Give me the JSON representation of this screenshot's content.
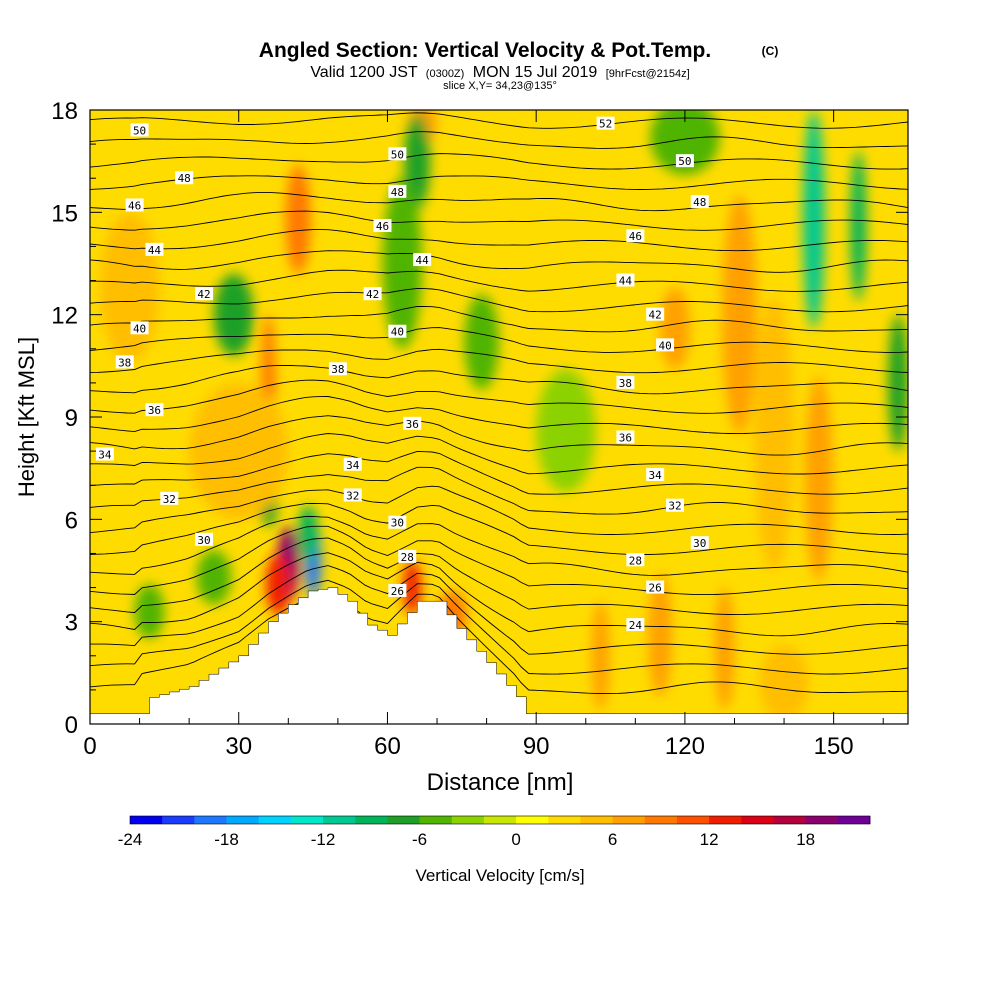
{
  "chart_data": {
    "type": "heatmap",
    "title": "Angled Section: Vertical Velocity & Pot.Temp.",
    "title_mark": "(C)",
    "subtitle_prefix": "Valid 1200 JST",
    "subtitle_zulu": "(0300Z)",
    "subtitle_date": "MON 15 Jul 2019",
    "subtitle_fcst": "[9hrFcst@2154z]",
    "slice_label": "slice X,Y= 34,23@135°",
    "xlabel": "Distance [nm]",
    "ylabel": "Height [Kft MSL]",
    "xlim": [
      0,
      165
    ],
    "ylim": [
      0,
      18
    ],
    "x_ticks": [
      0,
      30,
      60,
      90,
      120,
      150
    ],
    "y_ticks": [
      0,
      3,
      6,
      9,
      12,
      15,
      18
    ],
    "colorbar": {
      "label": "Vertical Velocity [cm/s]",
      "min": -24,
      "max": 20,
      "step": 2,
      "tick_values": [
        -24,
        -18,
        -12,
        -6,
        0,
        6,
        12,
        18
      ],
      "colors": [
        "#0000ee",
        "#1a3cff",
        "#1e78ff",
        "#00a8ff",
        "#00d2ff",
        "#00e6c8",
        "#00c890",
        "#00b45a",
        "#1ea028",
        "#50b400",
        "#8cd200",
        "#c8e600",
        "#ffff00",
        "#ffdc00",
        "#ffbe00",
        "#ffa000",
        "#ff7800",
        "#ff5000",
        "#f01e00",
        "#dc0014",
        "#b4003c",
        "#8c006e",
        "#6e0096"
      ]
    },
    "terrain": [
      [
        10,
        0.7
      ],
      [
        20,
        1.1
      ],
      [
        30,
        2.0
      ],
      [
        36,
        3.0
      ],
      [
        40,
        3.5
      ],
      [
        44,
        3.9
      ],
      [
        48,
        4.0
      ],
      [
        52,
        3.6
      ],
      [
        56,
        2.9
      ],
      [
        60,
        2.6
      ],
      [
        63,
        3.1
      ],
      [
        66,
        3.6
      ],
      [
        70,
        3.6
      ],
      [
        74,
        2.8
      ],
      [
        80,
        1.8
      ],
      [
        86,
        0.8
      ],
      [
        88,
        0.3
      ],
      [
        90,
        0.3
      ]
    ],
    "theta_labels": [
      {
        "x": 10,
        "y": 17.4,
        "t": "50"
      },
      {
        "x": 19,
        "y": 16.0,
        "t": "48"
      },
      {
        "x": 9,
        "y": 15.2,
        "t": "46"
      },
      {
        "x": 13,
        "y": 13.9,
        "t": "44"
      },
      {
        "x": 23,
        "y": 12.6,
        "t": "42"
      },
      {
        "x": 10,
        "y": 11.6,
        "t": "40"
      },
      {
        "x": 7,
        "y": 10.6,
        "t": "38"
      },
      {
        "x": 13,
        "y": 9.2,
        "t": "36"
      },
      {
        "x": 3,
        "y": 7.9,
        "t": "34"
      },
      {
        "x": 16,
        "y": 6.6,
        "t": "32"
      },
      {
        "x": 23,
        "y": 5.4,
        "t": "30"
      },
      {
        "x": 62,
        "y": 16.7,
        "t": "50"
      },
      {
        "x": 62,
        "y": 15.6,
        "t": "48"
      },
      {
        "x": 59,
        "y": 14.6,
        "t": "46"
      },
      {
        "x": 67,
        "y": 13.6,
        "t": "44"
      },
      {
        "x": 57,
        "y": 12.6,
        "t": "42"
      },
      {
        "x": 62,
        "y": 11.5,
        "t": "40"
      },
      {
        "x": 50,
        "y": 10.4,
        "t": "38"
      },
      {
        "x": 65,
        "y": 8.8,
        "t": "36"
      },
      {
        "x": 53,
        "y": 7.6,
        "t": "34"
      },
      {
        "x": 53,
        "y": 6.7,
        "t": "32"
      },
      {
        "x": 62,
        "y": 5.9,
        "t": "30"
      },
      {
        "x": 64,
        "y": 4.9,
        "t": "28"
      },
      {
        "x": 62,
        "y": 3.9,
        "t": "26"
      },
      {
        "x": 104,
        "y": 17.6,
        "t": "52"
      },
      {
        "x": 120,
        "y": 16.5,
        "t": "50"
      },
      {
        "x": 123,
        "y": 15.3,
        "t": "48"
      },
      {
        "x": 110,
        "y": 14.3,
        "t": "46"
      },
      {
        "x": 108,
        "y": 13.0,
        "t": "44"
      },
      {
        "x": 114,
        "y": 12.0,
        "t": "42"
      },
      {
        "x": 116,
        "y": 11.1,
        "t": "40"
      },
      {
        "x": 108,
        "y": 10.0,
        "t": "38"
      },
      {
        "x": 108,
        "y": 8.4,
        "t": "36"
      },
      {
        "x": 114,
        "y": 7.3,
        "t": "34"
      },
      {
        "x": 118,
        "y": 6.4,
        "t": "32"
      },
      {
        "x": 123,
        "y": 5.3,
        "t": "30"
      },
      {
        "x": 110,
        "y": 4.8,
        "t": "28"
      },
      {
        "x": 114,
        "y": 4.0,
        "t": "26"
      },
      {
        "x": 110,
        "y": 2.9,
        "t": "24"
      }
    ],
    "velocity_cells": [
      {
        "x": 40,
        "y": 4.7,
        "sx": 2.2,
        "sy": 1.1,
        "v": 19
      },
      {
        "x": 38,
        "y": 4.1,
        "sx": 2.5,
        "sy": 0.9,
        "v": 12
      },
      {
        "x": 45,
        "y": 4.8,
        "sx": 1.6,
        "sy": 1.1,
        "v": -20
      },
      {
        "x": 44,
        "y": 5.6,
        "sx": 2.0,
        "sy": 0.8,
        "v": -10
      },
      {
        "x": 36,
        "y": 6.4,
        "sx": 1.8,
        "sy": 0.6,
        "v": -8
      },
      {
        "x": 65,
        "y": 4.0,
        "sx": 1.8,
        "sy": 0.8,
        "v": 12
      },
      {
        "x": 73,
        "y": 3.2,
        "sx": 3.0,
        "sy": 0.7,
        "v": 9
      },
      {
        "x": 42,
        "y": 14.8,
        "sx": 2.5,
        "sy": 1.6,
        "v": 8
      },
      {
        "x": 36,
        "y": 10.2,
        "sx": 1.4,
        "sy": 1.8,
        "v": 8
      },
      {
        "x": 67,
        "y": 17.6,
        "sx": 3.0,
        "sy": 0.6,
        "v": 6
      },
      {
        "x": 66,
        "y": 16.5,
        "sx": 2.6,
        "sy": 1.4,
        "v": -8
      },
      {
        "x": 63,
        "y": 13.5,
        "sx": 4.0,
        "sy": 2.5,
        "v": -5
      },
      {
        "x": 29,
        "y": 12.0,
        "sx": 4.0,
        "sy": 1.2,
        "v": -7
      },
      {
        "x": 25,
        "y": 4.3,
        "sx": 3.5,
        "sy": 0.8,
        "v": -5
      },
      {
        "x": 12,
        "y": 3.3,
        "sx": 3.0,
        "sy": 0.8,
        "v": -5
      },
      {
        "x": 79,
        "y": 11.2,
        "sx": 3.5,
        "sy": 1.4,
        "v": -6
      },
      {
        "x": 96,
        "y": 8.6,
        "sx": 6.0,
        "sy": 1.8,
        "v": -4
      },
      {
        "x": 120,
        "y": 17.2,
        "sx": 7.0,
        "sy": 1.1,
        "v": -6
      },
      {
        "x": 131,
        "y": 12.0,
        "sx": 3.5,
        "sy": 3.5,
        "v": 7
      },
      {
        "x": 118,
        "y": 11.6,
        "sx": 3.0,
        "sy": 1.2,
        "v": 6
      },
      {
        "x": 146,
        "y": 14.8,
        "sx": 2.2,
        "sy": 3.2,
        "v": -11
      },
      {
        "x": 155,
        "y": 14.6,
        "sx": 1.6,
        "sy": 2.2,
        "v": -9
      },
      {
        "x": 147,
        "y": 7.2,
        "sx": 2.8,
        "sy": 3.0,
        "v": 6
      },
      {
        "x": 138,
        "y": 8.5,
        "sx": 4.0,
        "sy": 4.0,
        "v": 4
      },
      {
        "x": 163,
        "y": 10.0,
        "sx": 2.0,
        "sy": 2.0,
        "v": -7
      },
      {
        "x": 103,
        "y": 2.0,
        "sx": 1.8,
        "sy": 1.6,
        "v": 6
      },
      {
        "x": 115,
        "y": 2.6,
        "sx": 2.4,
        "sy": 1.8,
        "v": 7
      },
      {
        "x": 128,
        "y": 2.2,
        "sx": 2.0,
        "sy": 1.8,
        "v": 7
      },
      {
        "x": 140,
        "y": 1.2,
        "sx": 5.0,
        "sy": 1.1,
        "v": 5
      },
      {
        "x": 30,
        "y": 8.0,
        "sx": 10.0,
        "sy": 2.0,
        "v": 4
      },
      {
        "x": 8,
        "y": 12.8,
        "sx": 6.0,
        "sy": 2.2,
        "v": 4
      },
      {
        "x": 86,
        "y": 17.0,
        "sx": 6.0,
        "sy": 2.0,
        "v": 3
      }
    ]
  }
}
